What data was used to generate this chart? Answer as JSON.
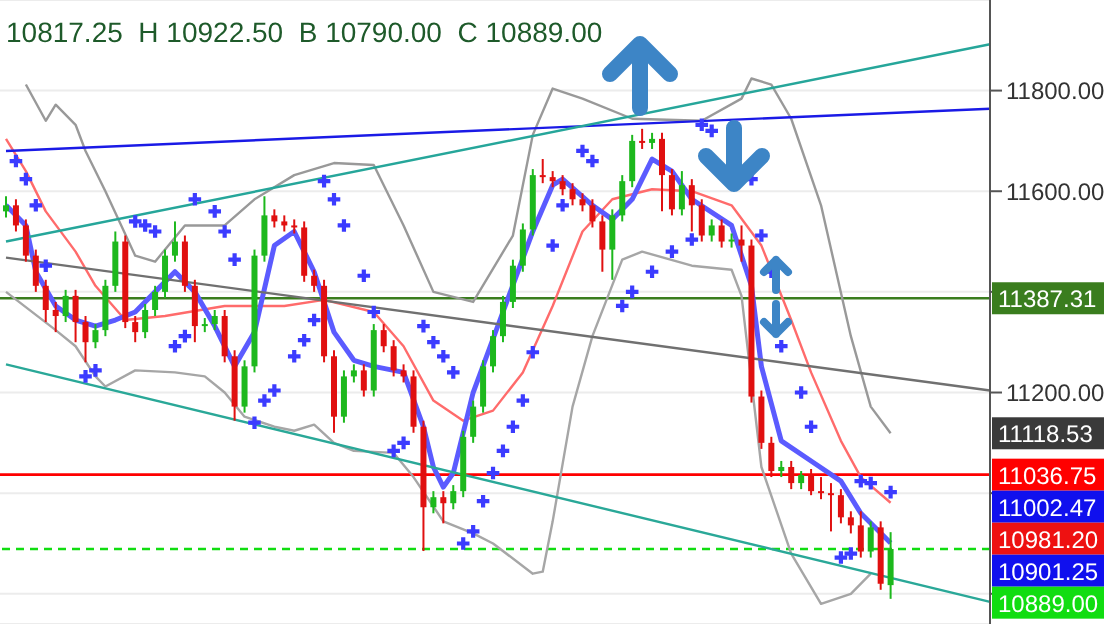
{
  "chart_data": {
    "type": "candlestick",
    "title": "10817.25  H 10922.50  B 10790.00  C 10889.00",
    "categories": [
      null,
      null,
      null,
      null,
      null,
      null,
      null,
      null,
      null,
      null,
      null,
      null,
      null,
      null,
      null,
      null,
      null,
      null,
      null,
      null,
      null,
      null,
      null,
      null,
      null,
      null,
      null,
      null,
      null,
      null,
      null,
      null,
      null,
      null,
      null,
      null,
      null,
      null,
      null,
      null,
      null,
      null,
      null,
      null,
      null,
      null,
      null,
      null,
      null,
      null,
      null,
      null,
      null,
      null,
      null,
      null,
      null,
      null,
      null,
      null,
      null,
      null,
      null,
      null,
      null,
      null,
      null,
      null,
      null,
      null,
      null,
      null,
      null,
      null,
      null,
      null,
      null,
      null,
      null,
      null,
      null,
      null,
      null,
      null,
      null,
      null,
      null,
      null,
      null,
      null,
      null,
      null,
      null,
      null,
      null,
      null,
      null,
      null,
      null,
      null
    ],
    "ohlc": [
      [
        11560,
        11590,
        11548,
        11572
      ],
      [
        11572,
        11584,
        11520,
        11532
      ],
      [
        11532,
        11544,
        11460,
        11472
      ],
      [
        11472,
        11484,
        11400,
        11412
      ],
      [
        11412,
        11424,
        11340,
        11364
      ],
      [
        11364,
        11380,
        11320,
        11352
      ],
      [
        11352,
        11404,
        11340,
        11392
      ],
      [
        11392,
        11404,
        11300,
        11340
      ],
      [
        11340,
        11352,
        11260,
        11300
      ],
      [
        11300,
        11336,
        11288,
        11324
      ],
      [
        11324,
        11424,
        11312,
        11412
      ],
      [
        11412,
        11520,
        11400,
        11500
      ],
      [
        11500,
        11512,
        11328,
        11340
      ],
      [
        11340,
        11352,
        11300,
        11320
      ],
      [
        11320,
        11376,
        11308,
        11364
      ],
      [
        11364,
        11412,
        11352,
        11400
      ],
      [
        11400,
        11484,
        11388,
        11472
      ],
      [
        11472,
        11540,
        11460,
        11500
      ],
      [
        11500,
        11512,
        11400,
        11412
      ],
      [
        11412,
        11424,
        11300,
        11332
      ],
      [
        11332,
        11348,
        11320,
        11336
      ],
      [
        11336,
        11364,
        11324,
        11352
      ],
      [
        11352,
        11364,
        11260,
        11272
      ],
      [
        11272,
        11284,
        11144,
        11172
      ],
      [
        11172,
        11264,
        11160,
        11252
      ],
      [
        11252,
        11484,
        11240,
        11472
      ],
      [
        11472,
        11590,
        11460,
        11552
      ],
      [
        11552,
        11564,
        11528,
        11540
      ],
      [
        11540,
        11552,
        11520,
        11532
      ],
      [
        11532,
        11544,
        11516,
        11528
      ],
      [
        11528,
        11540,
        11420,
        11432
      ],
      [
        11432,
        11444,
        11400,
        11412
      ],
      [
        11412,
        11424,
        11260,
        11272
      ],
      [
        11272,
        11284,
        11120,
        11152
      ],
      [
        11152,
        11244,
        11140,
        11232
      ],
      [
        11232,
        11256,
        11220,
        11244
      ],
      [
        11244,
        11256,
        11192,
        11204
      ],
      [
        11204,
        11336,
        11192,
        11324
      ],
      [
        11324,
        11336,
        11280,
        11292
      ],
      [
        11292,
        11304,
        11232,
        11244
      ],
      [
        11244,
        11256,
        11220,
        11232
      ],
      [
        11232,
        11244,
        11120,
        11132
      ],
      [
        11132,
        11144,
        10885,
        10972
      ],
      [
        10972,
        11004,
        10960,
        10992
      ],
      [
        10992,
        11004,
        10940,
        10980
      ],
      [
        10980,
        11016,
        10968,
        11004
      ],
      [
        11004,
        11124,
        10992,
        11112
      ],
      [
        11112,
        11184,
        11100,
        11172
      ],
      [
        11172,
        11264,
        11160,
        11252
      ],
      [
        11252,
        11324,
        11240,
        11312
      ],
      [
        11312,
        11392,
        11300,
        11380
      ],
      [
        11380,
        11464,
        11368,
        11452
      ],
      [
        11452,
        11536,
        11440,
        11524
      ],
      [
        11524,
        11644,
        11512,
        11632
      ],
      [
        11632,
        11664,
        11616,
        11628
      ],
      [
        11628,
        11640,
        11608,
        11620
      ],
      [
        11620,
        11632,
        11592,
        11604
      ],
      [
        11604,
        11616,
        11572,
        11584
      ],
      [
        11584,
        11596,
        11560,
        11572
      ],
      [
        11572,
        11584,
        11528,
        11540
      ],
      [
        11540,
        11552,
        11440,
        11484
      ],
      [
        11484,
        11564,
        11424,
        11552
      ],
      [
        11552,
        11632,
        11540,
        11620
      ],
      [
        11620,
        11712,
        11608,
        11700
      ],
      [
        11700,
        11724,
        11684,
        11696
      ],
      [
        11696,
        11716,
        11684,
        11704
      ],
      [
        11704,
        11716,
        11560,
        11632
      ],
      [
        11632,
        11644,
        11552,
        11564
      ],
      [
        11564,
        11640,
        11552,
        11612
      ],
      [
        11612,
        11624,
        11520,
        11572
      ],
      [
        11572,
        11584,
        11500,
        11512
      ],
      [
        11512,
        11544,
        11500,
        11532
      ],
      [
        11532,
        11544,
        11488,
        11500
      ],
      [
        11500,
        11516,
        11488,
        11504
      ],
      [
        11504,
        11532,
        11460,
        11492
      ],
      [
        11492,
        11504,
        11180,
        11192
      ],
      [
        11192,
        11204,
        11088,
        11100
      ],
      [
        11100,
        11112,
        11032,
        11044
      ],
      [
        11044,
        11064,
        11032,
        11052
      ],
      [
        11052,
        11064,
        11008,
        11020
      ],
      [
        11020,
        11044,
        11008,
        11036
      ],
      [
        11036,
        11048,
        10996,
        11004
      ],
      [
        11004,
        11032,
        10988,
        11000
      ],
      [
        11000,
        11020,
        10924,
        10996
      ],
      [
        10996,
        11008,
        10940,
        10952
      ],
      [
        10952,
        10964,
        10920,
        10936
      ],
      [
        10936,
        10964,
        10872,
        10884
      ],
      [
        10884,
        10944,
        10872,
        10932
      ],
      [
        10932,
        10944,
        10808,
        10820
      ],
      [
        10817.25,
        10922.5,
        10790,
        10889
      ],
      null,
      null,
      null,
      null,
      null,
      null,
      null,
      null,
      null,
      null
    ],
    "series": [
      {
        "type": "line",
        "color": "#999999",
        "values": [
          null,
          null,
          11812,
          null,
          11740,
          11772,
          null,
          11732,
          11680,
          null,
          11600,
          null,
          null,
          11472,
          null,
          11460,
          null,
          null,
          11532,
          null,
          null,
          null,
          11532,
          null,
          null,
          11584,
          null,
          null,
          null,
          11632,
          null,
          null,
          null,
          11656,
          null,
          null,
          null,
          11652,
          null,
          null,
          11532,
          null,
          null,
          11400,
          null,
          null,
          null,
          11380,
          null,
          null,
          null,
          11512,
          null,
          11712,
          null,
          11804,
          null,
          null,
          11784,
          null,
          null,
          null,
          null,
          11744,
          null,
          null,
          null,
          null,
          null,
          null,
          11740,
          null,
          null,
          null,
          11784,
          11824,
          null,
          11812,
          null,
          11744,
          null,
          null,
          11572,
          null,
          null,
          11312,
          null,
          11172,
          null,
          11119,
          null,
          null,
          null,
          null,
          null,
          null,
          null,
          null,
          null,
          null
        ]
      },
      {
        "type": "line",
        "color": "#a6a6a6",
        "values": [
          11400,
          null,
          null,
          null,
          null,
          11324,
          null,
          11292,
          null,
          11232,
          11212,
          null,
          null,
          11244,
          null,
          null,
          null,
          11240,
          null,
          null,
          11232,
          null,
          11200,
          null,
          11152,
          null,
          null,
          11132,
          null,
          11124,
          null,
          11136,
          null,
          11100,
          null,
          11084,
          null,
          null,
          null,
          11080,
          null,
          11032,
          null,
          null,
          10944,
          null,
          null,
          10920,
          null,
          10900,
          null,
          null,
          null,
          10840,
          10844,
          10944,
          null,
          11172,
          null,
          11312,
          null,
          null,
          11464,
          null,
          11480,
          null,
          null,
          null,
          null,
          11452,
          null,
          null,
          null,
          11444,
          11392,
          null,
          11052,
          null,
          null,
          10880,
          null,
          null,
          10780,
          null,
          null,
          10800,
          null,
          10840,
          null,
          null,
          null,
          null,
          null,
          null,
          null,
          null,
          null,
          null,
          null,
          null
        ]
      },
      {
        "type": "line",
        "color": "#ff6b6b",
        "values": [
          11704,
          null,
          11640,
          null,
          11560,
          null,
          null,
          11480,
          null,
          11412,
          null,
          null,
          11344,
          null,
          null,
          null,
          11352,
          null,
          null,
          null,
          null,
          null,
          11372,
          null,
          null,
          null,
          null,
          null,
          11372,
          null,
          null,
          null,
          11384,
          null,
          null,
          null,
          null,
          11360,
          null,
          null,
          11292,
          null,
          null,
          11184,
          null,
          null,
          11144,
          null,
          null,
          11164,
          null,
          null,
          11240,
          null,
          null,
          11372,
          null,
          null,
          11520,
          null,
          null,
          11584,
          null,
          null,
          null,
          11604,
          null,
          null,
          null,
          11600,
          null,
          null,
          null,
          11572,
          null,
          null,
          11492,
          null,
          null,
          11344,
          null,
          11240,
          null,
          null,
          11104,
          null,
          11032,
          null,
          null,
          10981,
          null,
          null,
          null,
          null,
          null,
          null,
          null,
          null,
          null,
          null
        ]
      },
      {
        "type": "line",
        "color": "#5b5bff",
        "values": [
          11572,
          null,
          11532,
          11440,
          null,
          11372,
          null,
          11344,
          null,
          11332,
          null,
          11344,
          null,
          11360,
          null,
          11400,
          null,
          11440,
          null,
          11400,
          null,
          11332,
          null,
          11252,
          null,
          11320,
          null,
          11492,
          null,
          11520,
          null,
          11440,
          null,
          11320,
          null,
          11264,
          null,
          11252,
          null,
          null,
          11240,
          null,
          11132,
          11052,
          11012,
          11040,
          null,
          11200,
          null,
          null,
          11360,
          null,
          null,
          11520,
          null,
          11612,
          11624,
          null,
          null,
          11572,
          null,
          11544,
          null,
          11584,
          null,
          11664,
          null,
          11640,
          null,
          11584,
          null,
          null,
          null,
          11532,
          null,
          11412,
          11252,
          null,
          11104,
          null,
          null,
          11064,
          null,
          null,
          11024,
          null,
          10960,
          null,
          null,
          10901,
          null,
          null,
          null,
          null,
          null,
          null,
          null,
          null,
          null,
          null
        ]
      },
      {
        "type": "scatter",
        "color": "#3b3bff",
        "marker": "cross",
        "values": [
          null,
          11660,
          11624,
          11572,
          11452,
          null,
          null,
          null,
          11232,
          11244,
          null,
          null,
          null,
          11540,
          11532,
          11520,
          null,
          11292,
          11312,
          11584,
          null,
          11560,
          11520,
          11464,
          null,
          11140,
          11184,
          11204,
          null,
          11272,
          11304,
          11344,
          11620,
          11584,
          11532,
          null,
          11432,
          11360,
          null,
          11084,
          11100,
          null,
          11332,
          11300,
          11272,
          11240,
          10900,
          10924,
          10984,
          11040,
          11084,
          11132,
          11184,
          11280,
          null,
          11492,
          11572,
          null,
          11680,
          11660,
          null,
          null,
          11372,
          11400,
          null,
          11440,
          null,
          11480,
          null,
          11504,
          11732,
          11720,
          null,
          null,
          null,
          11624,
          11512,
          11440,
          11292,
          null,
          11200,
          11132,
          null,
          null,
          10872,
          10880,
          11024,
          11020,
          null,
          11002,
          null,
          null,
          null,
          null,
          null,
          null,
          null,
          null,
          null,
          null
        ]
      },
      {
        "type": "line",
        "color": "#1a1ae6",
        "values": [
          11680,
          null,
          null,
          null,
          null,
          null,
          null,
          null,
          null,
          null,
          null,
          null,
          null,
          null,
          null,
          null,
          null,
          null,
          null,
          null,
          null,
          null,
          null,
          null,
          null,
          null,
          null,
          null,
          null,
          null,
          null,
          null,
          null,
          null,
          null,
          null,
          null,
          null,
          null,
          null,
          null,
          null,
          null,
          null,
          null,
          null,
          null,
          null,
          null,
          null,
          null,
          null,
          null,
          null,
          null,
          null,
          null,
          null,
          null,
          null,
          null,
          null,
          null,
          null,
          null,
          null,
          null,
          null,
          null,
          null,
          null,
          null,
          null,
          null,
          null,
          null,
          null,
          null,
          null,
          null,
          null,
          null,
          null,
          null,
          null,
          null,
          null,
          null,
          null,
          null,
          null,
          null,
          null,
          null,
          null,
          null,
          null,
          null,
          null,
          11764
        ]
      },
      {
        "type": "line",
        "color": "#26a69a",
        "values": [
          11500,
          null,
          null,
          null,
          null,
          null,
          null,
          null,
          null,
          null,
          null,
          null,
          null,
          null,
          null,
          null,
          null,
          null,
          null,
          null,
          null,
          null,
          null,
          null,
          null,
          null,
          null,
          null,
          null,
          null,
          null,
          null,
          null,
          null,
          null,
          null,
          null,
          null,
          null,
          null,
          null,
          null,
          null,
          null,
          null,
          null,
          null,
          null,
          null,
          null,
          null,
          null,
          null,
          null,
          null,
          null,
          null,
          null,
          null,
          null,
          null,
          null,
          null,
          null,
          null,
          null,
          null,
          null,
          null,
          null,
          null,
          null,
          null,
          null,
          null,
          null,
          null,
          null,
          null,
          null,
          null,
          null,
          null,
          null,
          null,
          null,
          null,
          null,
          null,
          null,
          null,
          null,
          null,
          null,
          null,
          null,
          null,
          null,
          null,
          11892
        ]
      },
      {
        "type": "line",
        "color": "#707070",
        "values": [
          11468,
          null,
          null,
          null,
          null,
          null,
          null,
          null,
          null,
          null,
          null,
          null,
          null,
          null,
          null,
          null,
          null,
          null,
          null,
          null,
          null,
          null,
          null,
          null,
          null,
          null,
          null,
          null,
          null,
          null,
          null,
          null,
          null,
          null,
          null,
          null,
          null,
          null,
          null,
          null,
          null,
          null,
          null,
          null,
          null,
          null,
          null,
          null,
          null,
          null,
          null,
          null,
          null,
          null,
          null,
          null,
          null,
          null,
          null,
          null,
          null,
          null,
          null,
          null,
          null,
          null,
          null,
          null,
          null,
          null,
          null,
          null,
          null,
          null,
          null,
          null,
          null,
          null,
          null,
          null,
          null,
          null,
          null,
          null,
          null,
          null,
          null,
          null,
          null,
          null,
          null,
          null,
          null,
          null,
          null,
          null,
          null,
          null,
          null,
          11204
        ]
      },
      {
        "type": "line",
        "color": "#2aa898",
        "values": [
          11256,
          null,
          null,
          null,
          null,
          null,
          null,
          null,
          null,
          null,
          null,
          null,
          null,
          null,
          null,
          null,
          null,
          null,
          null,
          null,
          null,
          null,
          null,
          null,
          null,
          null,
          null,
          null,
          null,
          null,
          null,
          null,
          null,
          null,
          null,
          null,
          null,
          null,
          null,
          null,
          null,
          null,
          null,
          null,
          null,
          null,
          null,
          null,
          null,
          null,
          null,
          null,
          null,
          null,
          null,
          null,
          null,
          null,
          null,
          null,
          null,
          null,
          null,
          null,
          null,
          null,
          null,
          null,
          null,
          null,
          null,
          null,
          null,
          null,
          null,
          null,
          null,
          null,
          null,
          null,
          null,
          null,
          null,
          null,
          null,
          null,
          null,
          null,
          null,
          null,
          null,
          null,
          null,
          null,
          null,
          null,
          null,
          null,
          null,
          10784
        ]
      }
    ],
    "ylim": [
      10740,
      11980
    ],
    "yticks": [
      {
        "value": 11800,
        "label": "11800.00"
      },
      {
        "value": 11600,
        "label": "11600.00"
      },
      {
        "value": 11400,
        "label": null
      },
      {
        "value": 11200,
        "label": "11200.00"
      },
      {
        "value": 11000,
        "label": null
      },
      {
        "value": 10800,
        "label": null
      }
    ],
    "grid": "y",
    "tick_labels": "y",
    "ref_lines": [
      {
        "axis": "y",
        "value": 11387.31,
        "label": "11387.31",
        "color": "#3a7d1e",
        "line_style": "solid"
      },
      {
        "axis": "y",
        "value": 11036.75,
        "label": "11036.75",
        "color": "#ff0000",
        "line_style": "solid"
      },
      {
        "axis": "y",
        "value": 10889,
        "label": "10889.00",
        "color": "#11dd11",
        "line_style": "dashed"
      }
    ],
    "annotations": [
      "11118.53",
      "11002.47",
      "10981.20",
      "10901.25"
    ]
  }
}
